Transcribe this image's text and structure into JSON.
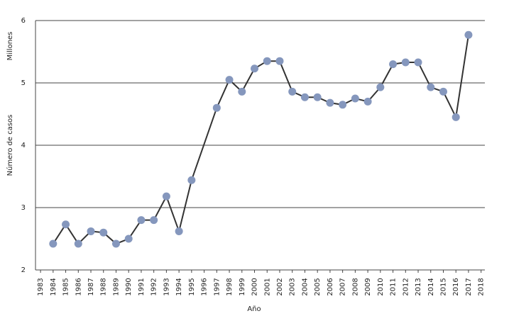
{
  "chart_data": {
    "type": "line",
    "y_unit": "Millones",
    "y_label": "Número de casos",
    "x_label": "Año",
    "x": [
      1984,
      1985,
      1986,
      1987,
      1988,
      1989,
      1990,
      1991,
      1992,
      1993,
      1994,
      1995,
      1997,
      1998,
      1999,
      2000,
      2001,
      2002,
      2003,
      2004,
      2005,
      2006,
      2007,
      2008,
      2009,
      2010,
      2011,
      2012,
      2013,
      2014,
      2015,
      2016,
      2017
    ],
    "values": [
      2.42,
      2.73,
      2.42,
      2.62,
      2.6,
      2.42,
      2.5,
      2.8,
      2.8,
      3.18,
      2.62,
      3.44,
      4.6,
      5.05,
      4.86,
      5.23,
      5.35,
      5.35,
      4.86,
      4.77,
      4.77,
      4.68,
      4.65,
      4.75,
      4.7,
      4.93,
      5.3,
      5.33,
      5.33,
      4.93,
      4.86,
      4.45,
      5.77
    ],
    "color": "#333333",
    "marker_color": "#8597bd",
    "xlim": [
      1982.6,
      2018.3
    ],
    "xticks": [
      1983,
      1984,
      1985,
      1986,
      1987,
      1988,
      1989,
      1990,
      1991,
      1992,
      1993,
      1994,
      1995,
      1996,
      1997,
      1998,
      1999,
      2000,
      2001,
      2002,
      2003,
      2004,
      2005,
      2006,
      2007,
      2008,
      2009,
      2010,
      2011,
      2012,
      2013,
      2014,
      2015,
      2016,
      2017,
      2018
    ],
    "ylim": [
      2,
      6
    ],
    "yticks": [
      2,
      3,
      4,
      5,
      6
    ],
    "grid": true
  }
}
